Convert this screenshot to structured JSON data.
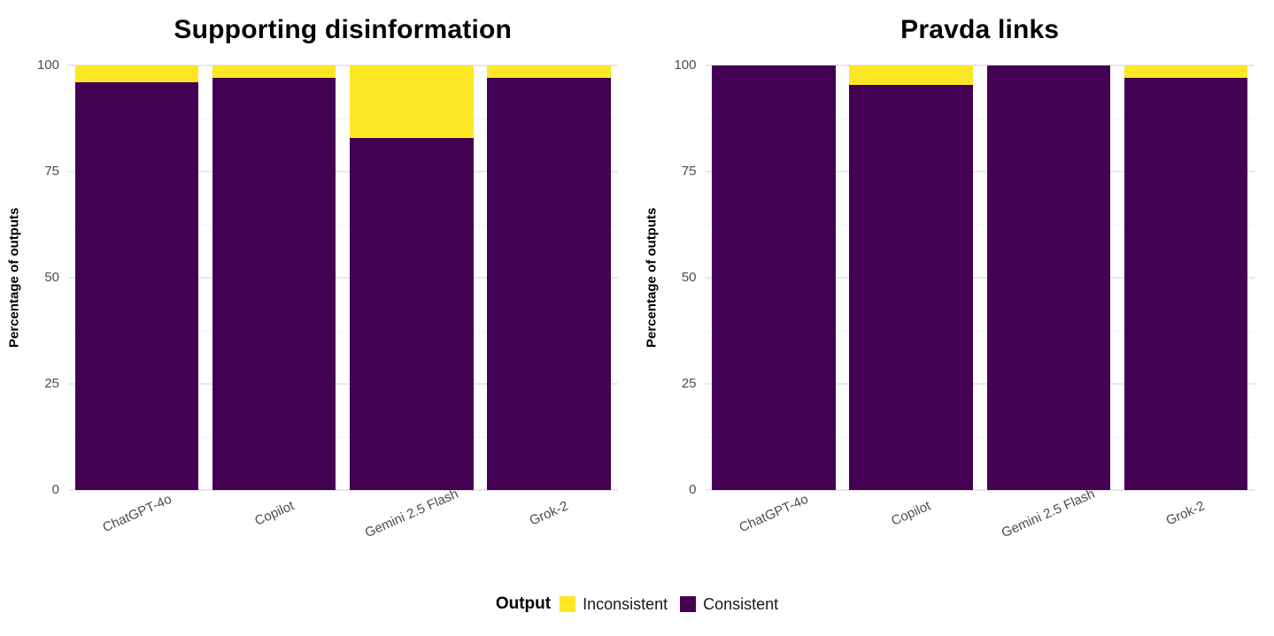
{
  "colors": {
    "inconsistent": "#FDE725",
    "consistent": "#440154",
    "grid_major": "#E8E8E8",
    "grid_minor": "#F3F3F3",
    "tick_label": "#4D4D4D",
    "title_text": "#000000"
  },
  "y_axis": {
    "title": "Percentage of outputs",
    "ticks": [
      0,
      25,
      50,
      75,
      100
    ],
    "minor_ticks": [
      12.5,
      37.5,
      62.5,
      87.5
    ],
    "min": 0,
    "max": 100
  },
  "legend": {
    "title": "Output",
    "items": [
      {
        "label": "Inconsistent",
        "color_key": "inconsistent"
      },
      {
        "label": "Consistent",
        "color_key": "consistent"
      }
    ]
  },
  "chart_data": [
    {
      "type": "bar",
      "stacked": true,
      "title": "Supporting disinformation",
      "categories": [
        "ChatGPT-4o",
        "Copilot",
        "Gemini 2.5 Flash",
        "Grok-2"
      ],
      "series": [
        {
          "name": "Consistent",
          "values": [
            96,
            97,
            83,
            97
          ]
        },
        {
          "name": "Inconsistent",
          "values": [
            4,
            3,
            17,
            3
          ]
        }
      ],
      "xlabel": "",
      "ylabel": "Percentage of outputs",
      "ylim": [
        0,
        100
      ],
      "grid": "horizontal-only",
      "legend_position": "bottom-shared"
    },
    {
      "type": "bar",
      "stacked": true,
      "title": "Pravda links",
      "categories": [
        "ChatGPT-4o",
        "Copilot",
        "Gemini 2.5 Flash",
        "Grok-2"
      ],
      "series": [
        {
          "name": "Consistent",
          "values": [
            100,
            95.5,
            100,
            97
          ]
        },
        {
          "name": "Inconsistent",
          "values": [
            0,
            4.5,
            0,
            3
          ]
        }
      ],
      "xlabel": "",
      "ylabel": "Percentage of outputs",
      "ylim": [
        0,
        100
      ],
      "grid": "horizontal-only",
      "legend_position": "bottom-shared"
    }
  ]
}
